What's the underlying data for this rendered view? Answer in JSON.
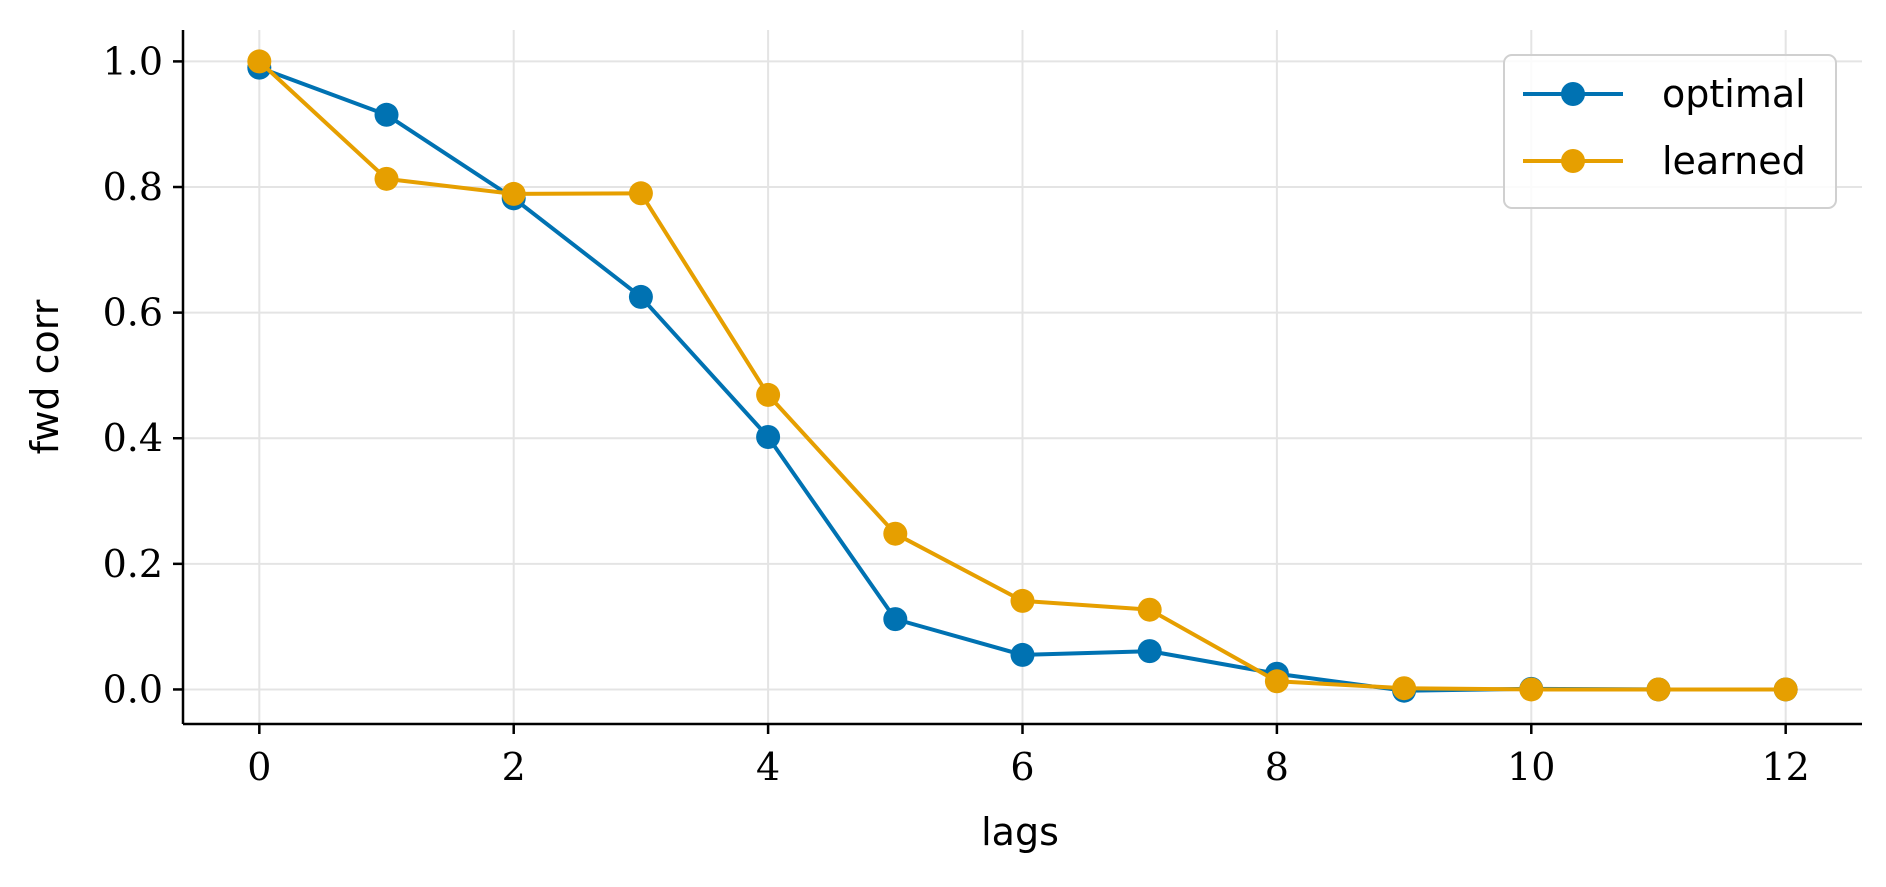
{
  "chart_data": {
    "type": "line",
    "title": "",
    "xlabel": "lags",
    "ylabel": "fwd corr",
    "xlim": [
      -0.6,
      12.6
    ],
    "ylim": [
      -0.055,
      1.05
    ],
    "xticks": [
      0,
      2,
      4,
      6,
      8,
      10,
      12
    ],
    "xtick_labels": [
      "0",
      "2",
      "4",
      "6",
      "8",
      "10",
      "12"
    ],
    "yticks": [
      0.0,
      0.2,
      0.4,
      0.6,
      0.8,
      1.0
    ],
    "ytick_labels": [
      "0.0",
      "0.2",
      "0.4",
      "0.6",
      "0.8",
      "1.0"
    ],
    "grid": true,
    "legend_position": "top-right",
    "x": [
      0,
      1,
      2,
      3,
      4,
      5,
      6,
      7,
      8,
      9,
      10,
      11,
      12
    ],
    "series": [
      {
        "name": "optimal",
        "color": "#0072B2",
        "values": [
          0.99,
          0.915,
          0.782,
          0.625,
          0.402,
          0.112,
          0.055,
          0.061,
          0.025,
          -0.002,
          0.001,
          0.0,
          0.0
        ]
      },
      {
        "name": "learned",
        "color": "#E69F00",
        "values": [
          1.0,
          0.813,
          0.789,
          0.79,
          0.469,
          0.248,
          0.141,
          0.127,
          0.013,
          0.002,
          0.0,
          0.0,
          0.0
        ]
      }
    ]
  }
}
